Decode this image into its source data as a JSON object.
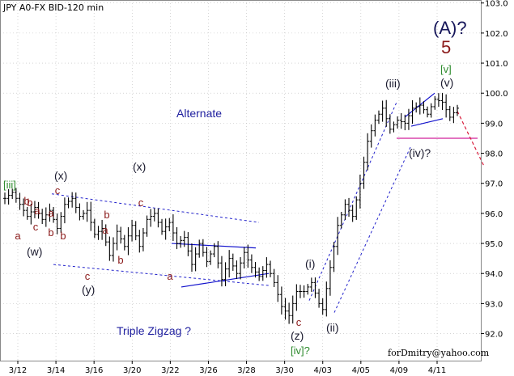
{
  "title": "JPY A0-FX BID-120 min",
  "credit": "forDmitry@yahoo.com",
  "notes": {
    "alternate": "Alternate",
    "pattern": "Triple Zigzag ?"
  },
  "colors": {
    "bars": "#000000",
    "channel": "#2222cc",
    "wedge": "#1111cc",
    "support": "#d0209a",
    "forecast": "#d81b3a",
    "grid": "#bbbbbb"
  },
  "wave_labels": [
    {
      "text": "(A)?",
      "color": "big"
    },
    {
      "text": "5",
      "color": "five"
    },
    {
      "text": "[v]",
      "color": "green"
    },
    {
      "text": "(v)",
      "color": "black"
    },
    {
      "text": "(iii)",
      "color": "black"
    },
    {
      "text": "(iv)?",
      "color": "black"
    },
    {
      "text": "(ii)",
      "color": "black"
    },
    {
      "text": "(i)",
      "color": "black"
    },
    {
      "text": "[iii]",
      "color": "green"
    },
    {
      "text": "(x)",
      "color": "black"
    },
    {
      "text": "c",
      "color": "red"
    },
    {
      "text": "b",
      "color": "red"
    },
    {
      "text": "a",
      "color": "red"
    },
    {
      "text": "a",
      "color": "red"
    },
    {
      "text": "b",
      "color": "red"
    },
    {
      "text": "c",
      "color": "red"
    },
    {
      "text": "(w)",
      "color": "black"
    },
    {
      "text": "b",
      "color": "red"
    },
    {
      "text": "a",
      "color": "red"
    },
    {
      "text": "b",
      "color": "red"
    },
    {
      "text": "c",
      "color": "red"
    },
    {
      "text": "(y)",
      "color": "black"
    },
    {
      "text": "a",
      "color": "red"
    },
    {
      "text": "b",
      "color": "red"
    },
    {
      "text": "(x)",
      "color": "black"
    },
    {
      "text": "c",
      "color": "red"
    },
    {
      "text": "a",
      "color": "red"
    },
    {
      "text": "b",
      "color": "red"
    },
    {
      "text": "c",
      "color": "red"
    },
    {
      "text": "(z)",
      "color": "black"
    },
    {
      "text": "[iv]?",
      "color": "green"
    }
  ],
  "chart_data": {
    "type": "ohlc",
    "title": "JPY A0-FX BID-120 min",
    "xlabel": "",
    "ylabel": "",
    "ylim": [
      91.1,
      103.1
    ],
    "yticks": [
      92.0,
      93.0,
      94.0,
      95.0,
      96.0,
      97.0,
      98.0,
      99.0,
      100.0,
      101.0,
      102.0,
      103.0
    ],
    "xticks": [
      "3/12",
      "3/14",
      "3/16",
      "3/20",
      "3/22",
      "3/26",
      "3/28",
      "3/30",
      "4/03",
      "4/05",
      "4/09",
      "4/11"
    ],
    "grid": true,
    "close_path": [
      [
        0,
        96.5
      ],
      [
        2,
        96.7
      ],
      [
        4,
        96.3
      ],
      [
        6,
        95.9
      ],
      [
        8,
        96.2
      ],
      [
        10,
        95.8
      ],
      [
        12,
        96.1
      ],
      [
        14,
        95.5
      ],
      [
        16,
        96.3
      ],
      [
        18,
        96.5
      ],
      [
        20,
        95.9
      ],
      [
        22,
        96.1
      ],
      [
        24,
        95.3
      ],
      [
        26,
        95.5
      ],
      [
        28,
        94.6
      ],
      [
        30,
        95.4
      ],
      [
        32,
        94.9
      ],
      [
        34,
        95.6
      ],
      [
        36,
        94.9
      ],
      [
        38,
        95.8
      ],
      [
        40,
        96.0
      ],
      [
        42,
        95.4
      ],
      [
        44,
        95.7
      ],
      [
        46,
        95.0
      ],
      [
        48,
        95.2
      ],
      [
        50,
        94.3
      ],
      [
        52,
        95.0
      ],
      [
        54,
        94.4
      ],
      [
        56,
        94.9
      ],
      [
        58,
        93.8
      ],
      [
        60,
        94.5
      ],
      [
        62,
        94.0
      ],
      [
        64,
        94.7
      ],
      [
        66,
        94.2
      ],
      [
        68,
        93.9
      ],
      [
        70,
        94.3
      ],
      [
        72,
        93.7
      ],
      [
        74,
        92.9
      ],
      [
        76,
        92.6
      ],
      [
        78,
        93.4
      ],
      [
        80,
        93.4
      ],
      [
        82,
        93.7
      ],
      [
        84,
        93.0
      ],
      [
        85,
        92.8
      ],
      [
        87,
        94.2
      ],
      [
        89,
        95.6
      ],
      [
        91,
        96.3
      ],
      [
        93,
        95.9
      ],
      [
        95,
        97.0
      ],
      [
        97,
        98.4
      ],
      [
        99,
        99.1
      ],
      [
        101,
        99.5
      ],
      [
        103,
        98.8
      ],
      [
        105,
        99.1
      ],
      [
        107,
        99.0
      ],
      [
        109,
        99.5
      ],
      [
        111,
        99.6
      ],
      [
        113,
        99.3
      ],
      [
        115,
        99.8
      ],
      [
        117,
        99.7
      ],
      [
        119,
        99.2
      ],
      [
        121,
        99.5
      ]
    ],
    "annotations": {
      "support_level": 98.5,
      "forecast": [
        [
          121,
          99.4
        ],
        [
          125,
          97.6
        ]
      ]
    }
  }
}
